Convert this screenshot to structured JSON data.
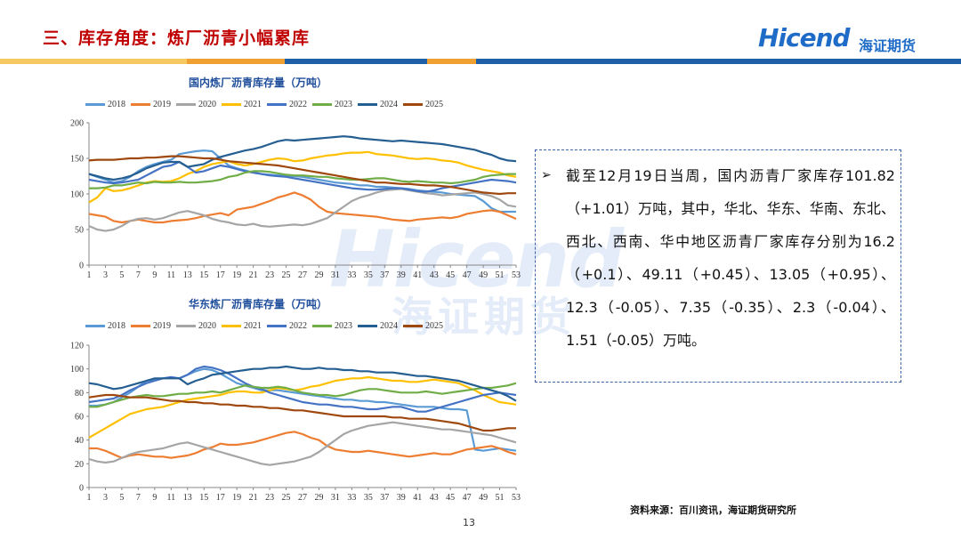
{
  "header": {
    "title": "三、库存角度：炼厂沥青小幅累库",
    "logo_text": "Hicend",
    "logo_cn": "海证期货"
  },
  "watermark": {
    "text": "Hicend",
    "cn": "海证期货"
  },
  "colors": {
    "title": "#c00000",
    "brand": "#1f6cc8",
    "bar_orange": "#f0a030",
    "bar_yellow": "#f6c85f",
    "bar_blue": "#1f5fa8",
    "s2018": "#5b9bd5",
    "s2019": "#ed7d31",
    "s2020": "#a5a5a5",
    "s2021": "#ffc000",
    "s2022": "#4472c4",
    "s2023": "#70ad47",
    "s2024": "#255e91",
    "s2025": "#9e480e"
  },
  "textbox": {
    "text": "截至12月19日当周，国内沥青厂家库存101.82（+1.01）万吨，其中，华北、华东、华南、东北、西北、西南、华中地区沥青厂家库存分别为16.2（+0.1）、49.11（+0.45）、13.05（+0.95）、12.3（-0.05）、7.35（-0.35）、2.3（-0.04）、1.51（-0.05）万吨。"
  },
  "footer": {
    "source": "资料来源：百川资讯，海证期货研究所",
    "page": "13"
  },
  "chart_data": [
    {
      "type": "line",
      "title": "国内炼厂沥青库存量（万吨）",
      "x": [
        1,
        2,
        3,
        4,
        5,
        6,
        7,
        8,
        9,
        10,
        11,
        12,
        13,
        14,
        15,
        16,
        17,
        18,
        19,
        20,
        21,
        22,
        23,
        24,
        25,
        26,
        27,
        28,
        29,
        30,
        31,
        32,
        33,
        34,
        35,
        36,
        37,
        38,
        39,
        40,
        41,
        42,
        43,
        44,
        45,
        46,
        47,
        48,
        49,
        50,
        51,
        52,
        53
      ],
      "xticks": [
        1,
        3,
        5,
        7,
        9,
        11,
        13,
        15,
        17,
        19,
        21,
        23,
        25,
        27,
        29,
        31,
        33,
        35,
        37,
        39,
        41,
        43,
        45,
        47,
        49,
        51,
        53
      ],
      "ylim": [
        0,
        200
      ],
      "yticks": [
        0,
        50,
        100,
        150,
        200
      ],
      "series": [
        {
          "name": "2018",
          "color": "#5b9bd5",
          "values": [
            128,
            124,
            120,
            116,
            118,
            124,
            132,
            138,
            142,
            145,
            148,
            156,
            158,
            160,
            161,
            160,
            150,
            140,
            136,
            133,
            130,
            128,
            127,
            126,
            126,
            125,
            124,
            122,
            120,
            118,
            116,
            115,
            114,
            112,
            112,
            110,
            110,
            109,
            108,
            107,
            105,
            104,
            103,
            102,
            100,
            99,
            98,
            97,
            90,
            80,
            75,
            75,
            75
          ]
        },
        {
          "name": "2019",
          "color": "#ed7d31",
          "values": [
            72,
            70,
            68,
            62,
            60,
            62,
            64,
            62,
            60,
            60,
            62,
            63,
            64,
            66,
            69,
            71,
            73,
            70,
            78,
            80,
            82,
            86,
            90,
            95,
            98,
            102,
            98,
            92,
            82,
            75,
            73,
            72,
            71,
            70,
            69,
            68,
            66,
            64,
            63,
            62,
            64,
            65,
            66,
            67,
            66,
            68,
            72,
            74,
            76,
            77,
            75,
            70,
            65
          ]
        },
        {
          "name": "2020",
          "color": "#a5a5a5",
          "values": [
            55,
            50,
            48,
            50,
            55,
            62,
            65,
            66,
            64,
            66,
            70,
            74,
            76,
            73,
            70,
            65,
            62,
            60,
            57,
            56,
            58,
            55,
            54,
            55,
            56,
            57,
            56,
            58,
            62,
            66,
            74,
            82,
            90,
            95,
            98,
            102,
            105,
            106,
            107,
            105,
            103,
            101,
            100,
            98,
            99,
            100,
            101,
            102,
            100,
            97,
            92,
            84,
            82
          ]
        },
        {
          "name": "2021",
          "color": "#ffc000",
          "values": [
            88,
            95,
            108,
            104,
            105,
            108,
            112,
            116,
            118,
            117,
            118,
            122,
            128,
            132,
            138,
            142,
            144,
            146,
            142,
            140,
            142,
            145,
            148,
            150,
            149,
            146,
            147,
            150,
            152,
            154,
            155,
            157,
            158,
            158,
            159,
            156,
            155,
            154,
            152,
            150,
            149,
            150,
            149,
            147,
            146,
            144,
            140,
            137,
            134,
            132,
            130,
            126,
            124
          ]
        },
        {
          "name": "2022",
          "color": "#4472c4",
          "values": [
            120,
            118,
            116,
            115,
            116,
            118,
            120,
            126,
            132,
            138,
            140,
            145,
            138,
            130,
            132,
            136,
            140,
            138,
            135,
            132,
            130,
            128,
            126,
            125,
            124,
            122,
            120,
            118,
            116,
            114,
            112,
            110,
            108,
            107,
            106,
            106,
            107,
            108,
            108,
            106,
            104,
            103,
            105,
            108,
            110,
            112,
            114,
            116,
            118,
            120,
            119,
            118,
            116
          ]
        },
        {
          "name": "2023",
          "color": "#70ad47",
          "values": [
            108,
            108,
            109,
            112,
            112,
            114,
            116,
            115,
            117,
            116,
            116,
            117,
            116,
            116,
            117,
            118,
            120,
            124,
            126,
            130,
            132,
            132,
            131,
            129,
            127,
            126,
            126,
            125,
            124,
            124,
            122,
            121,
            120,
            120,
            121,
            122,
            122,
            120,
            118,
            117,
            118,
            117,
            116,
            116,
            115,
            116,
            118,
            120,
            124,
            126,
            127,
            128,
            128
          ]
        },
        {
          "name": "2024",
          "color": "#255e91",
          "values": [
            128,
            125,
            122,
            120,
            122,
            125,
            130,
            136,
            140,
            144,
            145,
            145,
            138,
            140,
            142,
            148,
            152,
            155,
            158,
            161,
            163,
            166,
            170,
            174,
            176,
            175,
            176,
            177,
            178,
            179,
            180,
            181,
            180,
            178,
            177,
            176,
            175,
            174,
            175,
            174,
            173,
            172,
            171,
            170,
            168,
            166,
            164,
            162,
            158,
            155,
            150,
            147,
            146
          ]
        },
        {
          "name": "2025",
          "color": "#9e480e",
          "values": [
            147,
            148,
            148,
            148,
            149,
            150,
            150,
            151,
            151,
            152,
            153,
            153,
            152,
            151,
            150,
            150,
            148,
            146,
            145,
            144,
            143,
            142,
            141,
            140,
            138,
            136,
            134,
            132,
            130,
            128,
            126,
            124,
            122,
            120,
            118,
            116,
            116,
            115,
            114,
            114,
            113,
            112,
            112,
            111,
            110,
            108,
            106,
            104,
            102,
            101,
            100,
            101,
            101
          ]
        }
      ]
    },
    {
      "type": "line",
      "title": "华东炼厂沥青库存量（万吨）",
      "x": [
        1,
        2,
        3,
        4,
        5,
        6,
        7,
        8,
        9,
        10,
        11,
        12,
        13,
        14,
        15,
        16,
        17,
        18,
        19,
        20,
        21,
        22,
        23,
        24,
        25,
        26,
        27,
        28,
        29,
        30,
        31,
        32,
        33,
        34,
        35,
        36,
        37,
        38,
        39,
        40,
        41,
        42,
        43,
        44,
        45,
        46,
        47,
        48,
        49,
        50,
        51,
        52,
        53
      ],
      "xticks": [
        1,
        3,
        5,
        7,
        9,
        11,
        13,
        15,
        17,
        19,
        21,
        23,
        25,
        27,
        29,
        31,
        33,
        35,
        37,
        39,
        41,
        43,
        45,
        47,
        49,
        51,
        53
      ],
      "ylim": [
        0,
        120
      ],
      "yticks": [
        0,
        20,
        40,
        60,
        80,
        100,
        120
      ],
      "series": [
        {
          "name": "2018",
          "color": "#5b9bd5",
          "values": [
            69,
            69,
            70,
            72,
            76,
            80,
            85,
            90,
            91,
            92,
            93,
            92,
            95,
            98,
            100,
            99,
            96,
            92,
            88,
            86,
            84,
            82,
            82,
            82,
            81,
            80,
            79,
            78,
            77,
            76,
            75,
            74,
            74,
            73,
            73,
            72,
            72,
            71,
            70,
            69,
            68,
            68,
            68,
            67,
            66,
            66,
            65,
            32,
            31,
            32,
            33,
            32,
            31
          ]
        },
        {
          "name": "2019",
          "color": "#ed7d31",
          "values": [
            33,
            33,
            31,
            28,
            25,
            27,
            28,
            27,
            26,
            26,
            25,
            26,
            27,
            29,
            32,
            34,
            37,
            36,
            36,
            37,
            38,
            40,
            42,
            44,
            46,
            47,
            45,
            42,
            40,
            35,
            32,
            31,
            30,
            30,
            31,
            30,
            29,
            28,
            27,
            26,
            27,
            28,
            29,
            28,
            28,
            30,
            32,
            33,
            34,
            35,
            33,
            30,
            28
          ]
        },
        {
          "name": "2020",
          "color": "#a5a5a5",
          "values": [
            24,
            22,
            21,
            22,
            25,
            28,
            30,
            31,
            32,
            33,
            35,
            37,
            38,
            36,
            34,
            32,
            30,
            28,
            26,
            24,
            22,
            20,
            19,
            20,
            21,
            22,
            24,
            26,
            30,
            35,
            40,
            45,
            48,
            50,
            52,
            53,
            54,
            55,
            54,
            53,
            52,
            51,
            50,
            49,
            49,
            48,
            47,
            46,
            45,
            44,
            42,
            40,
            38
          ]
        },
        {
          "name": "2021",
          "color": "#ffc000",
          "values": [
            42,
            46,
            50,
            54,
            58,
            62,
            64,
            66,
            67,
            68,
            70,
            72,
            74,
            75,
            76,
            77,
            78,
            80,
            81,
            81,
            80,
            80,
            82,
            84,
            83,
            82,
            83,
            85,
            86,
            88,
            90,
            91,
            92,
            92,
            93,
            92,
            91,
            90,
            90,
            89,
            89,
            90,
            91,
            90,
            89,
            88,
            85,
            82,
            78,
            75,
            72,
            71,
            70
          ]
        },
        {
          "name": "2022",
          "color": "#4472c4",
          "values": [
            72,
            73,
            74,
            75,
            78,
            82,
            85,
            88,
            90,
            92,
            93,
            92,
            95,
            100,
            102,
            101,
            99,
            96,
            92,
            88,
            85,
            83,
            80,
            78,
            76,
            74,
            72,
            71,
            70,
            70,
            69,
            68,
            68,
            67,
            66,
            66,
            67,
            68,
            68,
            66,
            64,
            64,
            66,
            68,
            70,
            72,
            74,
            76,
            78,
            79,
            80,
            79,
            78
          ]
        },
        {
          "name": "2023",
          "color": "#70ad47",
          "values": [
            68,
            68,
            70,
            72,
            74,
            76,
            77,
            78,
            77,
            77,
            78,
            79,
            79,
            80,
            80,
            81,
            80,
            82,
            84,
            86,
            85,
            84,
            84,
            85,
            84,
            82,
            80,
            79,
            78,
            78,
            77,
            78,
            80,
            82,
            83,
            83,
            82,
            81,
            80,
            80,
            80,
            81,
            80,
            79,
            80,
            81,
            82,
            83,
            84,
            84,
            85,
            86,
            88
          ]
        },
        {
          "name": "2024",
          "color": "#255e91",
          "values": [
            88,
            87,
            85,
            83,
            84,
            86,
            88,
            90,
            92,
            92,
            92,
            92,
            87,
            90,
            92,
            95,
            96,
            97,
            98,
            99,
            100,
            100,
            101,
            101,
            102,
            101,
            100,
            100,
            101,
            100,
            100,
            99,
            99,
            98,
            98,
            97,
            97,
            97,
            96,
            95,
            94,
            94,
            93,
            92,
            91,
            90,
            88,
            86,
            84,
            82,
            80,
            77,
            73
          ]
        },
        {
          "name": "2025",
          "color": "#9e480e",
          "values": [
            76,
            77,
            78,
            78,
            77,
            76,
            76,
            76,
            75,
            74,
            73,
            73,
            72,
            72,
            71,
            71,
            70,
            70,
            69,
            69,
            68,
            68,
            67,
            67,
            66,
            65,
            65,
            64,
            63,
            62,
            61,
            60,
            60,
            60,
            60,
            60,
            60,
            59,
            59,
            58,
            58,
            58,
            57,
            56,
            55,
            54,
            52,
            50,
            48,
            48,
            49,
            50,
            50
          ]
        }
      ]
    }
  ]
}
